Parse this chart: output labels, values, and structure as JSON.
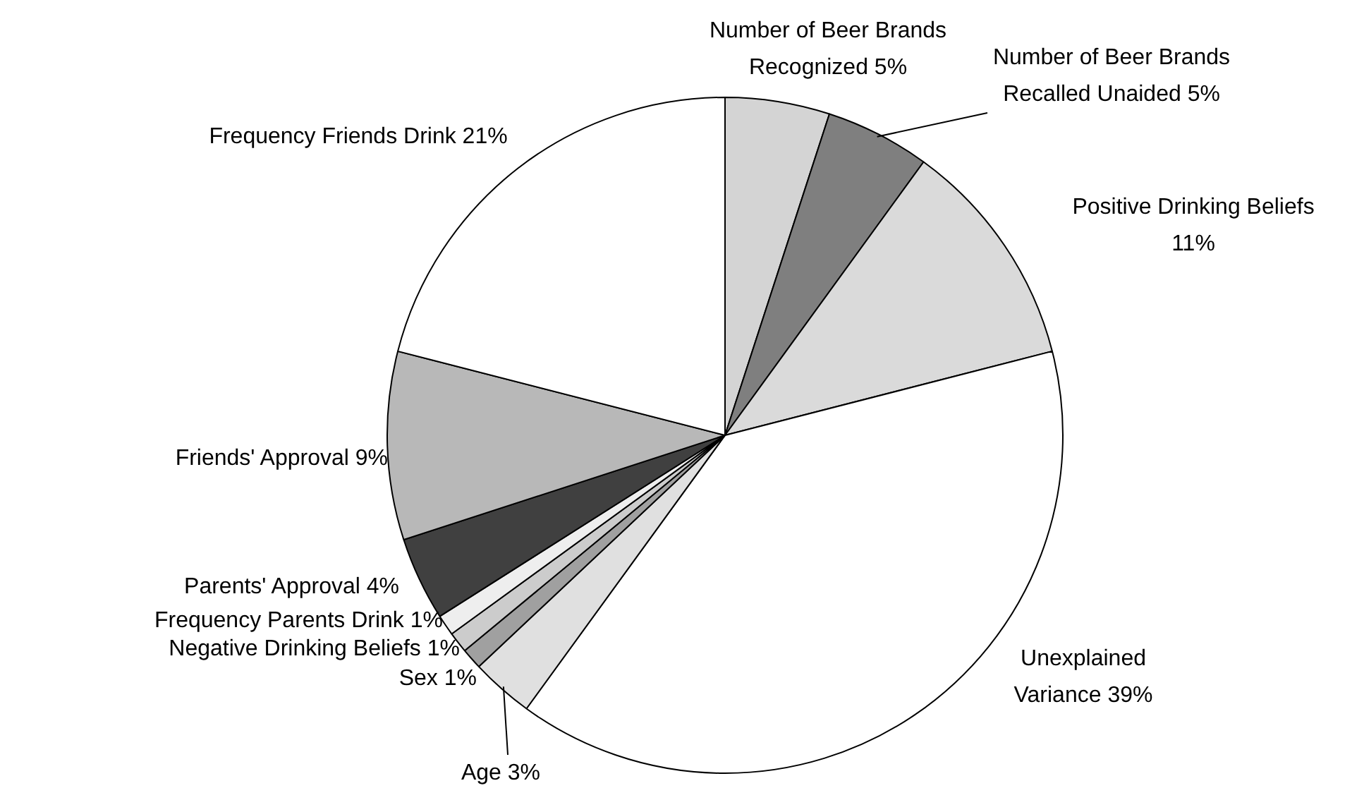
{
  "chart_data": {
    "type": "pie",
    "categories": [
      "Number of Beer Brands Recognized",
      "Number of Beer Brands Recalled Unaided",
      "Positive Drinking Beliefs",
      "Unexplained Variance",
      "Age",
      "Sex",
      "Negative Drinking Beliefs",
      "Frequency Parents Drink",
      "Parents' Approval",
      "Friends' Approval",
      "Frequency Friends Drink"
    ],
    "values": [
      5,
      5,
      11,
      39,
      3,
      1,
      1,
      1,
      4,
      9,
      21
    ],
    "value_labels": [
      "5%",
      "5%",
      "11%",
      "39%",
      "3%",
      "1%",
      "1%",
      "1%",
      "4%",
      "9%",
      "21%"
    ],
    "colors": [
      "#d4d4d4",
      "#7f7f7f",
      "#dadada",
      "#ffffff",
      "#e0e0e0",
      "#a0a0a0",
      "#cccccc",
      "#eeeeee",
      "#404040",
      "#b8b8b8",
      "#ffffff"
    ],
    "legend": false
  }
}
